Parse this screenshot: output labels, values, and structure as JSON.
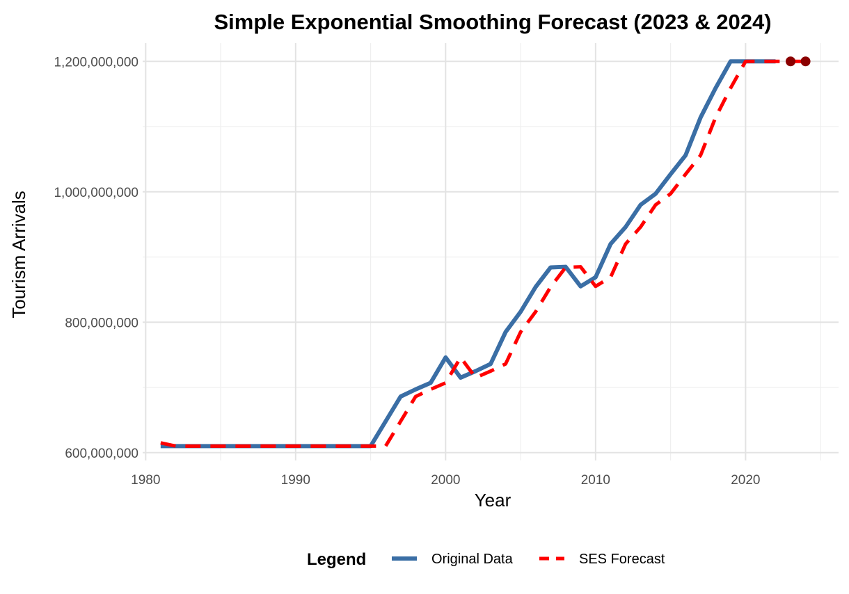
{
  "chart_data": {
    "type": "line",
    "title": "Simple Exponential Smoothing Forecast (2023 & 2024)",
    "xlabel": "Year",
    "ylabel": "Tourism Arrivals",
    "xlim": [
      1979.8,
      2026.2
    ],
    "ylim": [
      588000000,
      1228000000
    ],
    "x_ticks": [
      1980,
      1990,
      2000,
      2010,
      2020
    ],
    "x_tick_labels": [
      "1980",
      "1990",
      "2000",
      "2010",
      "2020"
    ],
    "y_ticks": [
      600000000,
      800000000,
      1000000000,
      1200000000
    ],
    "y_tick_labels": [
      "600,000,000",
      "800,000,000",
      "1,000,000,000",
      "1,200,000,000"
    ],
    "grid": true,
    "legend_position": "bottom",
    "legend_title": "Legend",
    "series": [
      {
        "name": "Original Data",
        "color": "#3a6ea5",
        "style": "solid",
        "x": [
          1981,
          1982,
          1983,
          1984,
          1985,
          1986,
          1987,
          1988,
          1989,
          1990,
          1991,
          1992,
          1993,
          1994,
          1995,
          1996,
          1997,
          1998,
          1999,
          2000,
          2001,
          2002,
          2003,
          2004,
          2005,
          2006,
          2007,
          2008,
          2009,
          2010,
          2011,
          2012,
          2013,
          2014,
          2015,
          2016,
          2017,
          2018,
          2019,
          2020,
          2021,
          2022
        ],
        "y": [
          610000000,
          610000000,
          610000000,
          610000000,
          610000000,
          610000000,
          610000000,
          610000000,
          610000000,
          610000000,
          610000000,
          610000000,
          610000000,
          610000000,
          610000000,
          648000000,
          686000000,
          697000000,
          707000000,
          746000000,
          715000000,
          725000000,
          736000000,
          785000000,
          816000000,
          854000000,
          884000000,
          885000000,
          855000000,
          869000000,
          920000000,
          946000000,
          980000000,
          997000000,
          1027000000,
          1056000000,
          1114000000,
          1159000000,
          1200000000,
          1200000000,
          1200000000,
          1200000000
        ]
      },
      {
        "name": "SES Forecast",
        "color": "#ff0000",
        "style": "dashed",
        "x": [
          1981,
          1982,
          1983,
          1984,
          1985,
          1986,
          1987,
          1988,
          1989,
          1990,
          1991,
          1992,
          1993,
          1994,
          1995,
          1996,
          1997,
          1998,
          1999,
          2000,
          2001,
          2002,
          2003,
          2004,
          2005,
          2006,
          2007,
          2008,
          2009,
          2010,
          2011,
          2012,
          2013,
          2014,
          2015,
          2016,
          2017,
          2018,
          2019,
          2020,
          2021,
          2022,
          2023,
          2024
        ],
        "y": [
          615000000,
          610000000,
          610000000,
          610000000,
          610000000,
          610000000,
          610000000,
          610000000,
          610000000,
          610000000,
          610000000,
          610000000,
          610000000,
          610000000,
          610000000,
          610000000,
          648000000,
          686000000,
          697000000,
          707000000,
          746000000,
          715000000,
          725000000,
          736000000,
          785000000,
          816000000,
          854000000,
          884000000,
          885000000,
          855000000,
          869000000,
          920000000,
          946000000,
          980000000,
          997000000,
          1027000000,
          1056000000,
          1114000000,
          1159000000,
          1200000000,
          1200000000,
          1200000000,
          1200000000,
          1200000000
        ]
      }
    ],
    "forecast_points": {
      "color": "#8b0000",
      "x": [
        2023,
        2024
      ],
      "y": [
        1200000000,
        1200000000
      ]
    }
  }
}
